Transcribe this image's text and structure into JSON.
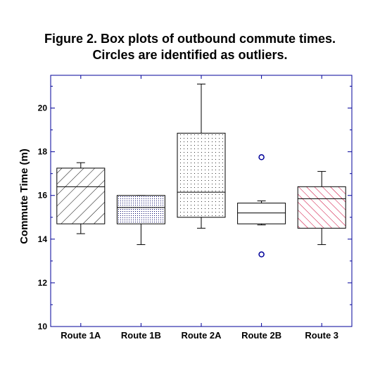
{
  "chart_data": {
    "type": "box",
    "title_lines": [
      "Figure 2. Box plots of outbound commute times.",
      "Circles are identified as outliers."
    ],
    "xlabel": "",
    "ylabel": "Commute Time (m)",
    "ylim": [
      10,
      21.5
    ],
    "yticks": [
      10,
      12,
      14,
      16,
      18,
      20
    ],
    "categories": [
      "Route 1A",
      "Route 1B",
      "Route 2A",
      "Route 2B",
      "Route 3"
    ],
    "boxes": [
      {
        "category": "Route 1A",
        "whisker_low": 14.25,
        "q1": 14.7,
        "median": 16.4,
        "q3": 17.25,
        "whisker_high": 17.5,
        "outliers": [],
        "fill": "hatch-forward",
        "color": "#000000"
      },
      {
        "category": "Route 1B",
        "whisker_low": 13.75,
        "q1": 14.7,
        "median": 15.45,
        "q3": 16.0,
        "whisker_high": 16.0,
        "outliers": [],
        "fill": "dense-dots",
        "color": "#000066"
      },
      {
        "category": "Route 2A",
        "whisker_low": 14.5,
        "q1": 15.0,
        "median": 16.15,
        "q3": 18.85,
        "whisker_high": 21.1,
        "outliers": [],
        "fill": "sparse-dots",
        "color": "#000000"
      },
      {
        "category": "Route 2B",
        "whisker_low": 14.65,
        "q1": 14.7,
        "median": 15.2,
        "q3": 15.65,
        "whisker_high": 15.75,
        "outliers": [
          13.3,
          17.75
        ],
        "fill": "none",
        "color": "#000000"
      },
      {
        "category": "Route 3",
        "whisker_low": 13.75,
        "q1": 14.5,
        "median": 15.85,
        "q3": 16.4,
        "whisker_high": 17.1,
        "outliers": [],
        "fill": "hatch-back",
        "color": "#cc0033"
      }
    ],
    "grid": false,
    "frame_color": "#000099",
    "outlier_color": "#000099"
  }
}
